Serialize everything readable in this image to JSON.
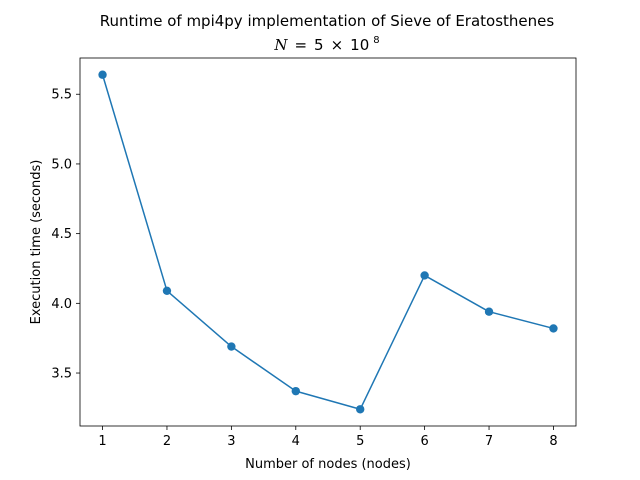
{
  "chart_data": {
    "type": "line",
    "title": "Runtime of mpi4py implementation of Sieve of Eratosthenes",
    "subtitle": {
      "variable": "N",
      "equals": "=",
      "base_coefficient": "5",
      "times": "×",
      "base": "10",
      "exponent": "8"
    },
    "xlabel": "Number of nodes (nodes)",
    "ylabel": "Execution time (seconds)",
    "xlim": [
      0.65,
      8.35
    ],
    "ylim": [
      3.12,
      5.76
    ],
    "x_ticks": [
      1,
      2,
      3,
      4,
      5,
      6,
      7,
      8
    ],
    "x_tick_labels": [
      "1",
      "2",
      "3",
      "4",
      "5",
      "6",
      "7",
      "8"
    ],
    "y_ticks": [
      3.5,
      4.0,
      4.5,
      5.0,
      5.5
    ],
    "y_tick_labels": [
      "3.5",
      "4.0",
      "4.5",
      "5.0",
      "5.5"
    ],
    "grid": false,
    "legend": false,
    "series": [
      {
        "x": [
          1,
          2,
          3,
          4,
          5,
          6,
          7,
          8
        ],
        "values": [
          5.64,
          4.09,
          3.69,
          3.37,
          3.24,
          4.2,
          3.94,
          3.82
        ],
        "color": "#1f77b4",
        "marker": "circle"
      }
    ]
  }
}
